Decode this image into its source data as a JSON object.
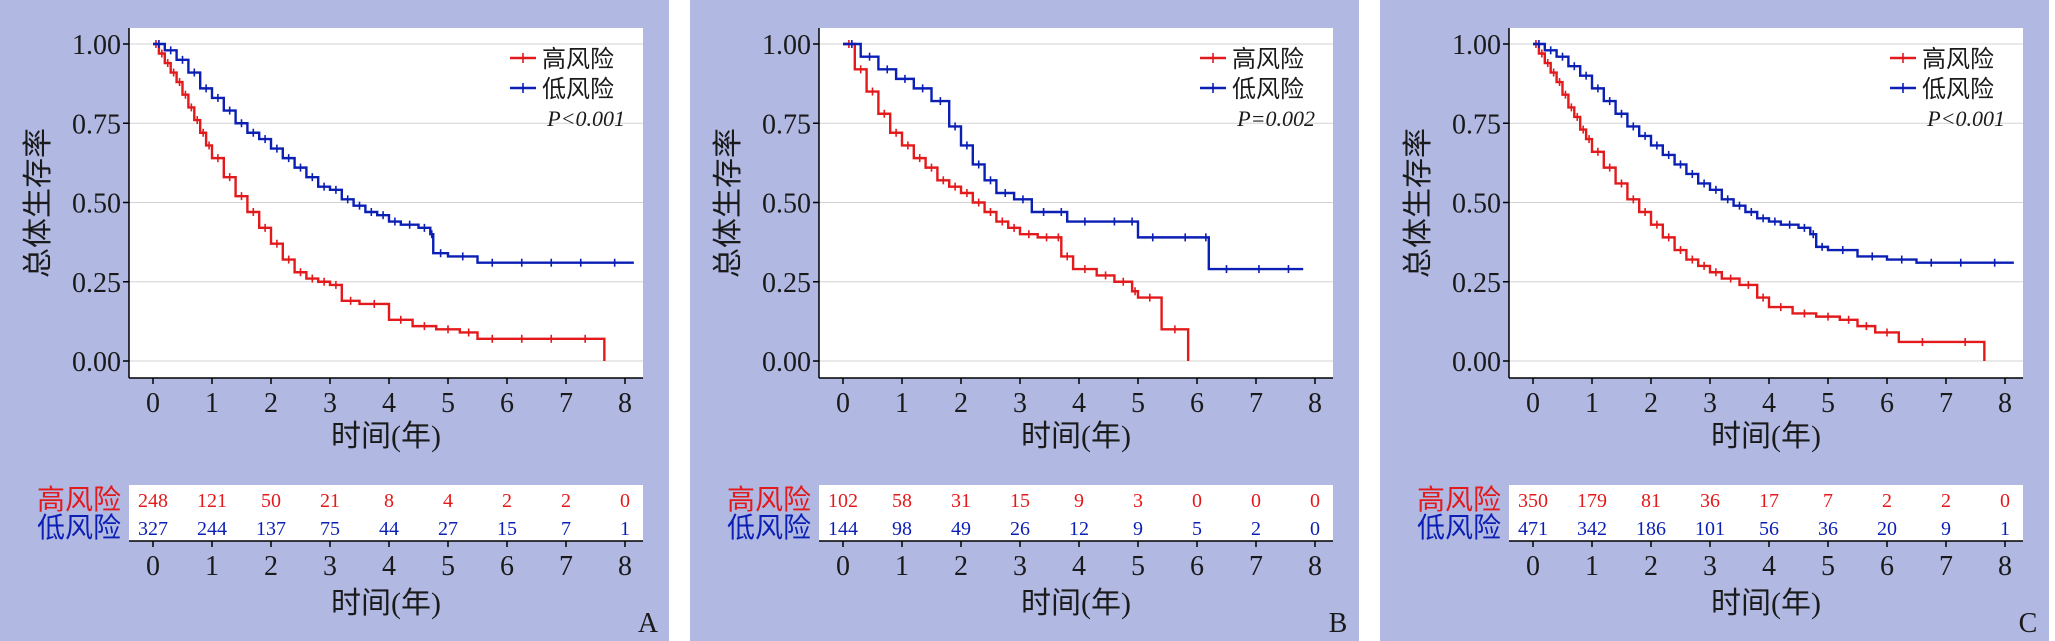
{
  "colors": {
    "high": "#e31a1c",
    "low": "#0b1fb5",
    "panel_bg": "#b1b9e3",
    "grid": "#d3d3d3"
  },
  "panels": [
    {
      "letter": "A",
      "legend": [
        "高风险",
        "低风险"
      ],
      "pvalue": "P<0.001",
      "ylabel": "总体生存率",
      "xlabel": "时间(年)",
      "table_xlabel": "时间(年)",
      "table_rows": [
        {
          "label": "高风险",
          "counts": [
            "248",
            "121",
            "50",
            "21",
            "8",
            "4",
            "2",
            "2",
            "0"
          ]
        },
        {
          "label": "低风险",
          "counts": [
            "327",
            "244",
            "137",
            "75",
            "44",
            "27",
            "15",
            "7",
            "1"
          ]
        }
      ]
    },
    {
      "letter": "B",
      "legend": [
        "高风险",
        "低风险"
      ],
      "pvalue": "P=0.002",
      "ylabel": "总体生存率",
      "xlabel": "时间(年)",
      "table_xlabel": "时间(年)",
      "table_rows": [
        {
          "label": "高风险",
          "counts": [
            "102",
            "58",
            "31",
            "15",
            "9",
            "3",
            "0",
            "0",
            "0"
          ]
        },
        {
          "label": "低风险",
          "counts": [
            "144",
            "98",
            "49",
            "26",
            "12",
            "9",
            "5",
            "2",
            "0"
          ]
        }
      ]
    },
    {
      "letter": "C",
      "legend": [
        "高风险",
        "低风险"
      ],
      "pvalue": "P<0.001",
      "ylabel": "总体生存率",
      "xlabel": "时间(年)",
      "table_xlabel": "时间(年)",
      "table_rows": [
        {
          "label": "高风险",
          "counts": [
            "350",
            "179",
            "81",
            "36",
            "17",
            "7",
            "2",
            "2",
            "0"
          ]
        },
        {
          "label": "低风险",
          "counts": [
            "471",
            "342",
            "186",
            "101",
            "56",
            "36",
            "20",
            "9",
            "1"
          ]
        }
      ]
    }
  ],
  "chart_data": [
    {
      "type": "line",
      "title": "",
      "xlabel": "时间(年)",
      "ylabel": "总体生存率",
      "xlim": [
        0,
        8.2
      ],
      "ylim": [
        0,
        1
      ],
      "xticks": [
        "0",
        "1",
        "2",
        "3",
        "4",
        "5",
        "6",
        "7",
        "8"
      ],
      "yticks": [
        "0.00",
        "0.25",
        "0.50",
        "0.75",
        "1.00"
      ],
      "grid": true,
      "legend_position": "top-right",
      "series": [
        {
          "name": "高风险",
          "color": "#e31a1c",
          "x": [
            0,
            0.1,
            0.2,
            0.3,
            0.4,
            0.5,
            0.6,
            0.7,
            0.8,
            0.9,
            1.0,
            1.2,
            1.4,
            1.6,
            1.8,
            2.0,
            2.2,
            2.4,
            2.6,
            2.8,
            3.0,
            3.2,
            3.5,
            4.0,
            4.4,
            4.8,
            5.2,
            5.5,
            6.0,
            6.5,
            7.0,
            7.65,
            7.65
          ],
          "y": [
            1.0,
            0.97,
            0.94,
            0.91,
            0.88,
            0.84,
            0.8,
            0.76,
            0.72,
            0.68,
            0.64,
            0.58,
            0.52,
            0.47,
            0.42,
            0.37,
            0.32,
            0.28,
            0.26,
            0.25,
            0.24,
            0.19,
            0.18,
            0.13,
            0.11,
            0.1,
            0.09,
            0.07,
            0.07,
            0.07,
            0.07,
            0.07,
            0.0
          ]
        },
        {
          "name": "低风险",
          "color": "#0b1fb5",
          "x": [
            0,
            0.2,
            0.4,
            0.6,
            0.8,
            1.0,
            1.2,
            1.4,
            1.6,
            1.8,
            2.0,
            2.2,
            2.4,
            2.6,
            2.8,
            3.0,
            3.2,
            3.4,
            3.6,
            3.8,
            4.0,
            4.2,
            4.5,
            4.7,
            4.75,
            5.0,
            5.5,
            6.0,
            6.5,
            7.0,
            7.5,
            8.15
          ],
          "y": [
            1.0,
            0.98,
            0.95,
            0.91,
            0.86,
            0.83,
            0.79,
            0.75,
            0.72,
            0.7,
            0.67,
            0.64,
            0.61,
            0.58,
            0.55,
            0.54,
            0.51,
            0.49,
            0.47,
            0.46,
            0.44,
            0.43,
            0.42,
            0.4,
            0.34,
            0.33,
            0.31,
            0.31,
            0.31,
            0.31,
            0.31,
            0.31
          ]
        }
      ]
    },
    {
      "type": "line",
      "title": "",
      "xlabel": "时间(年)",
      "ylabel": "总体生存率",
      "xlim": [
        0,
        8.2
      ],
      "ylim": [
        0,
        1
      ],
      "xticks": [
        "0",
        "1",
        "2",
        "3",
        "4",
        "5",
        "6",
        "7",
        "8"
      ],
      "yticks": [
        "0.00",
        "0.25",
        "0.50",
        "0.75",
        "1.00"
      ],
      "grid": true,
      "legend_position": "top-right",
      "series": [
        {
          "name": "高风险",
          "color": "#e31a1c",
          "x": [
            0,
            0.2,
            0.4,
            0.6,
            0.8,
            1.0,
            1.2,
            1.4,
            1.6,
            1.8,
            2.0,
            2.2,
            2.4,
            2.6,
            2.8,
            3.0,
            3.3,
            3.6,
            3.7,
            3.9,
            4.3,
            4.6,
            4.9,
            5.0,
            5.4,
            5.85,
            5.85
          ],
          "y": [
            1.0,
            0.92,
            0.85,
            0.78,
            0.72,
            0.68,
            0.64,
            0.61,
            0.57,
            0.55,
            0.53,
            0.5,
            0.47,
            0.44,
            0.42,
            0.4,
            0.39,
            0.39,
            0.33,
            0.29,
            0.27,
            0.25,
            0.22,
            0.2,
            0.1,
            0.1,
            0.0
          ]
        },
        {
          "name": "低风险",
          "color": "#0b1fb5",
          "x": [
            0,
            0.3,
            0.6,
            0.9,
            1.2,
            1.5,
            1.8,
            2.0,
            2.2,
            2.4,
            2.6,
            2.9,
            3.2,
            3.6,
            3.8,
            4.4,
            4.8,
            5.0,
            5.5,
            6.1,
            6.2,
            6.8,
            7.3,
            7.8
          ],
          "y": [
            1.0,
            0.96,
            0.92,
            0.89,
            0.86,
            0.82,
            0.74,
            0.68,
            0.62,
            0.57,
            0.53,
            0.51,
            0.47,
            0.47,
            0.44,
            0.44,
            0.44,
            0.39,
            0.39,
            0.39,
            0.29,
            0.29,
            0.29,
            0.29
          ]
        }
      ]
    },
    {
      "type": "line",
      "title": "",
      "xlabel": "时间(年)",
      "ylabel": "总体生存率",
      "xlim": [
        0,
        8.2
      ],
      "ylim": [
        0,
        1
      ],
      "xticks": [
        "0",
        "1",
        "2",
        "3",
        "4",
        "5",
        "6",
        "7",
        "8"
      ],
      "yticks": [
        "0.00",
        "0.25",
        "0.50",
        "0.75",
        "1.00"
      ],
      "grid": true,
      "legend_position": "top-right",
      "series": [
        {
          "name": "高风险",
          "color": "#e31a1c",
          "x": [
            0,
            0.1,
            0.2,
            0.3,
            0.4,
            0.5,
            0.6,
            0.7,
            0.8,
            0.9,
            1.0,
            1.2,
            1.4,
            1.6,
            1.8,
            2.0,
            2.2,
            2.4,
            2.6,
            2.8,
            3.0,
            3.2,
            3.5,
            3.8,
            4.0,
            4.4,
            4.8,
            5.2,
            5.5,
            5.8,
            6.2,
            7.0,
            7.65,
            7.65
          ],
          "y": [
            1.0,
            0.97,
            0.94,
            0.91,
            0.88,
            0.84,
            0.8,
            0.77,
            0.73,
            0.7,
            0.66,
            0.61,
            0.56,
            0.51,
            0.47,
            0.43,
            0.39,
            0.35,
            0.32,
            0.3,
            0.28,
            0.26,
            0.24,
            0.2,
            0.17,
            0.15,
            0.14,
            0.13,
            0.11,
            0.09,
            0.06,
            0.06,
            0.06,
            0.0
          ]
        },
        {
          "name": "低风险",
          "color": "#0b1fb5",
          "x": [
            0,
            0.2,
            0.4,
            0.6,
            0.8,
            1.0,
            1.2,
            1.4,
            1.6,
            1.8,
            2.0,
            2.2,
            2.4,
            2.6,
            2.8,
            3.0,
            3.2,
            3.4,
            3.6,
            3.8,
            4.0,
            4.2,
            4.5,
            4.7,
            4.8,
            5.0,
            5.5,
            6.0,
            6.5,
            7.0,
            7.5,
            8.15
          ],
          "y": [
            1.0,
            0.98,
            0.96,
            0.93,
            0.9,
            0.86,
            0.82,
            0.78,
            0.74,
            0.71,
            0.68,
            0.65,
            0.62,
            0.59,
            0.56,
            0.54,
            0.51,
            0.49,
            0.47,
            0.45,
            0.44,
            0.43,
            0.42,
            0.4,
            0.36,
            0.35,
            0.33,
            0.32,
            0.31,
            0.31,
            0.31,
            0.31
          ]
        }
      ]
    }
  ]
}
